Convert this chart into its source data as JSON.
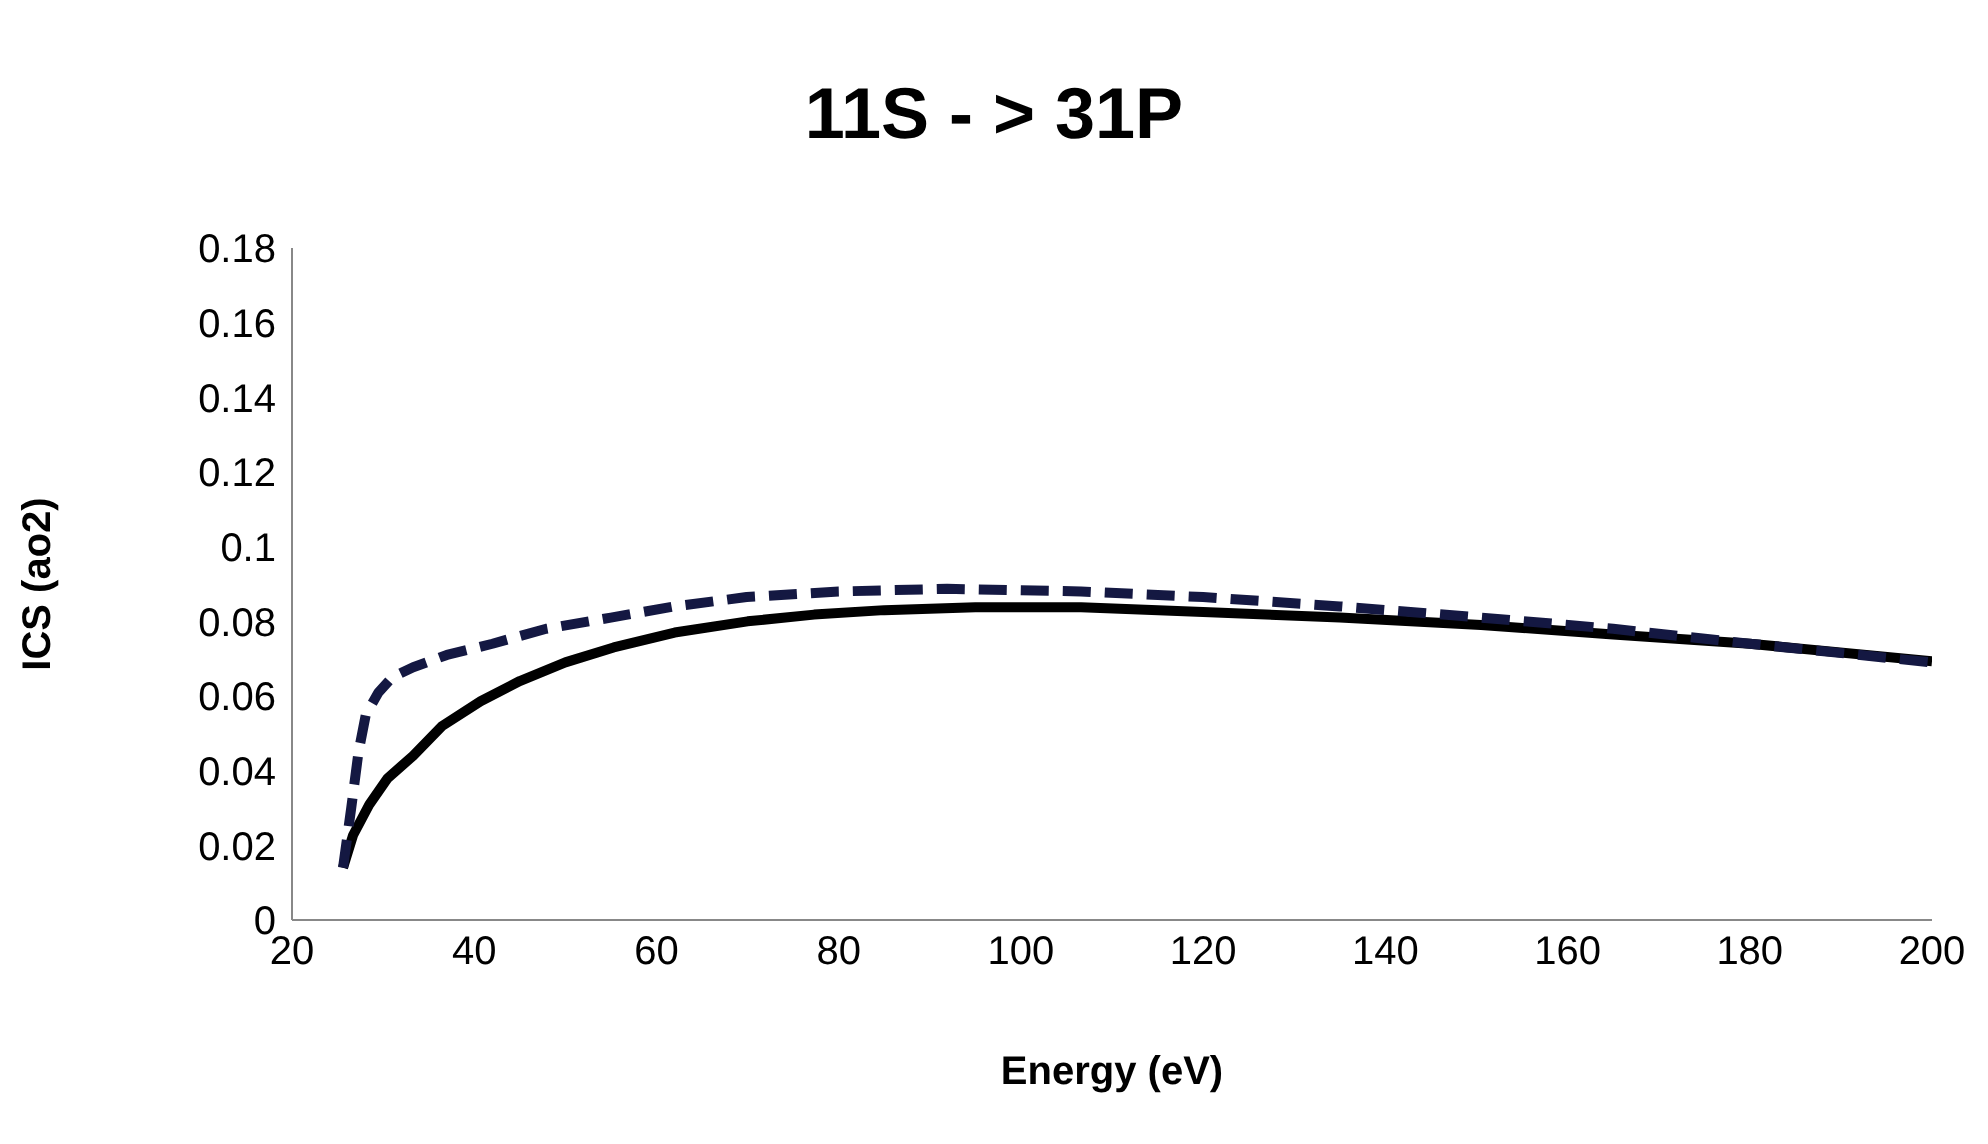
{
  "chart_data": {
    "type": "line",
    "title": "11S - > 31P",
    "xlabel": "Energy (eV)",
    "ylabel": "ICS (ao2)",
    "xlim": [
      20,
      200
    ],
    "xticks": [
      20,
      40,
      60,
      80,
      100,
      120,
      140,
      160,
      180,
      200
    ],
    "ylim": [
      0,
      0.18
    ],
    "yticks": [
      0,
      0.02,
      0.04,
      0.06,
      0.08,
      0.1,
      0.12,
      0.14,
      0.16,
      0.18
    ],
    "grid": false,
    "legend": false,
    "marker": "none",
    "series": [
      {
        "color": "#000000",
        "line_style": "solid",
        "x": [
          25.6,
          26.7,
          28.5,
          30.5,
          33.3,
          36.5,
          40.7,
          45,
          50,
          55.3,
          62,
          70,
          77.3,
          85,
          95,
          106.6,
          120,
          135,
          150.5,
          165,
          180,
          200
        ],
        "values": [
          0.014,
          0.0227,
          0.031,
          0.038,
          0.044,
          0.052,
          0.0586,
          0.064,
          0.069,
          0.073,
          0.077,
          0.08,
          0.0818,
          0.083,
          0.0838,
          0.0838,
          0.0825,
          0.081,
          0.079,
          0.0765,
          0.074,
          0.0693
        ]
      },
      {
        "color": "#141842",
        "line_style": "dashed",
        "x": [
          25.6,
          26.5,
          27.3,
          28.1,
          29.5,
          31,
          33.3,
          37,
          42,
          47.9,
          55,
          62,
          69.9,
          80,
          91.9,
          106.6,
          120,
          135,
          150.5,
          165,
          180,
          200
        ],
        "values": [
          0.014,
          0.03,
          0.045,
          0.055,
          0.061,
          0.065,
          0.0677,
          0.071,
          0.074,
          0.078,
          0.081,
          0.084,
          0.0865,
          0.088,
          0.0887,
          0.088,
          0.0865,
          0.084,
          0.081,
          0.078,
          0.074,
          0.069
        ]
      }
    ]
  }
}
